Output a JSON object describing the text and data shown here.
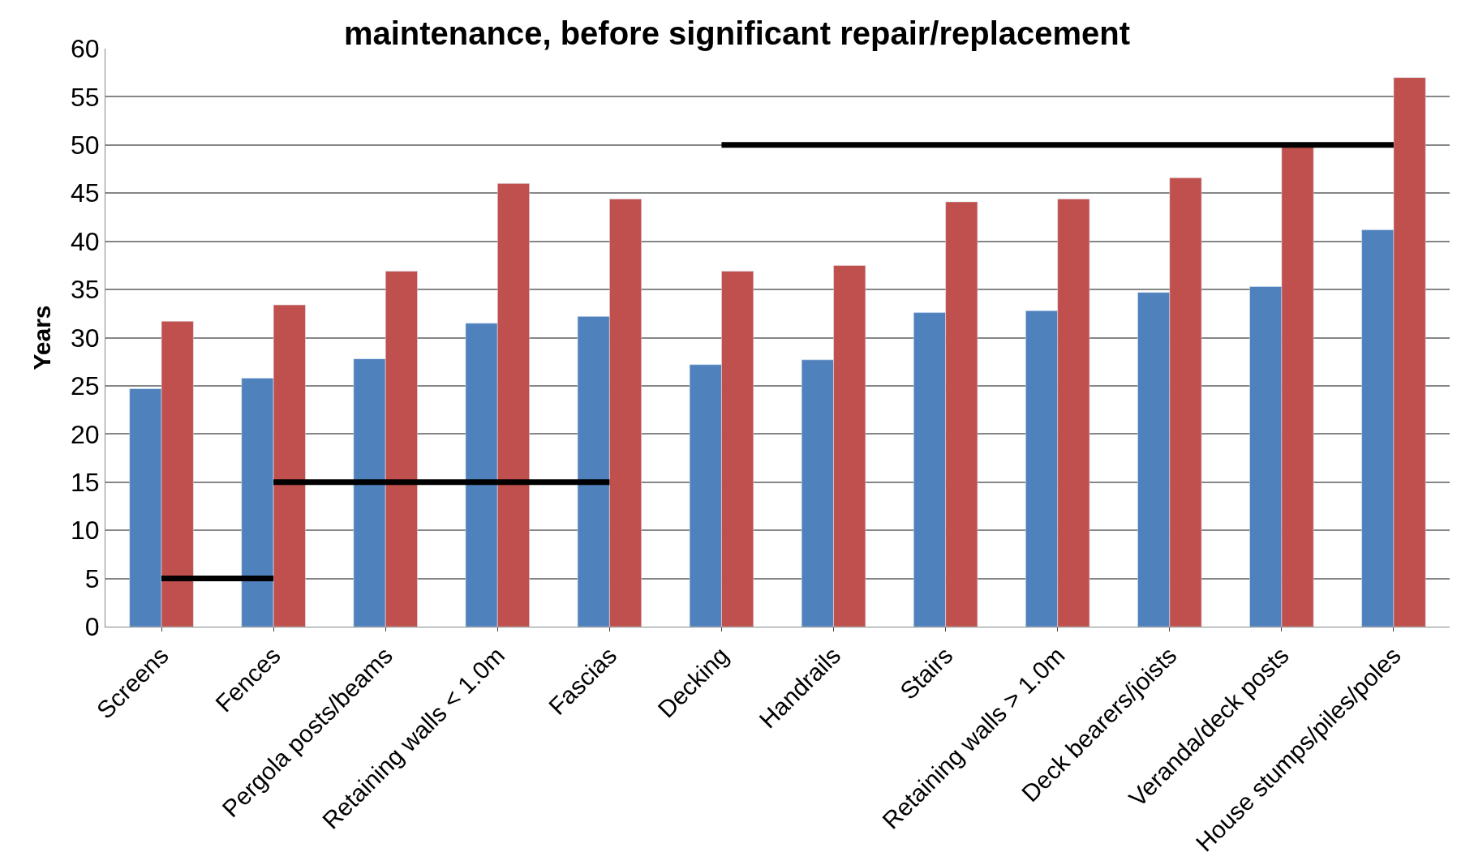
{
  "chart_data": {
    "type": "bar",
    "title": "maintenance, before significant repair/replacement",
    "ylabel": "Years",
    "categories": [
      "Screens",
      "Fences",
      "Pergola posts/beams",
      "Retaining walls < 1.0m",
      "Fascias",
      "Decking",
      "Handrails",
      "Stairs",
      "Retaining walls > 1.0m",
      "Deck bearers/joists",
      "Veranda/deck posts",
      "House stumps/piles/poles"
    ],
    "series": [
      {
        "color": "#4f81bd",
        "values": [
          24.7,
          25.8,
          27.8,
          31.5,
          32.2,
          27.2,
          27.7,
          32.6,
          32.8,
          34.7,
          35.3,
          41.2
        ]
      },
      {
        "color": "#c0504d",
        "values": [
          31.7,
          33.4,
          36.9,
          46.0,
          44.4,
          36.9,
          37.5,
          44.1,
          44.4,
          46.6,
          49.8,
          57.0
        ]
      },
      {
        "type": "line",
        "color": "#000000",
        "x": [
          "Screens",
          "Fences"
        ],
        "values": [
          5,
          5
        ]
      },
      {
        "type": "line",
        "color": "#000000",
        "x": [
          "Fences",
          "Fascias"
        ],
        "values": [
          15,
          15
        ]
      },
      {
        "type": "line",
        "color": "#000000",
        "x": [
          "Decking",
          "House stumps/piles/poles"
        ],
        "values": [
          50,
          50
        ]
      }
    ],
    "ylim": [
      0,
      60
    ],
    "yticks": [
      0,
      5,
      10,
      15,
      20,
      25,
      30,
      35,
      40,
      45,
      50,
      55,
      60
    ],
    "grid": "y"
  }
}
